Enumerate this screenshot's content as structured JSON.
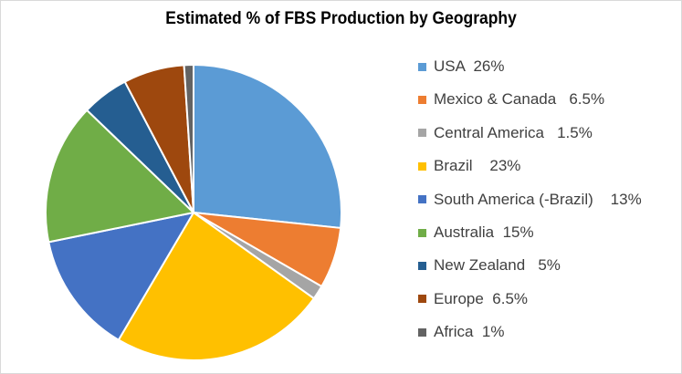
{
  "chart_data": {
    "type": "pie",
    "title": "Estimated % of FBS Production by Geography",
    "legend_position": "right",
    "series": [
      {
        "name": "USA",
        "value": 26,
        "legend_label": "USA  26%",
        "color": "#5b9bd5"
      },
      {
        "name": "Mexico & Canada",
        "value": 6.5,
        "legend_label": "Mexico & Canada   6.5%",
        "color": "#ed7d31"
      },
      {
        "name": "Central America",
        "value": 1.5,
        "legend_label": "Central America   1.5%",
        "color": "#a5a5a5"
      },
      {
        "name": "Brazil",
        "value": 23,
        "legend_label": "Brazil    23%",
        "color": "#ffc000"
      },
      {
        "name": "South America (-Brazil)",
        "value": 13,
        "legend_label": "South America (-Brazil)    13%",
        "color": "#4472c4"
      },
      {
        "name": "Australia",
        "value": 15,
        "legend_label": "Australia  15%",
        "color": "#70ad47"
      },
      {
        "name": "New Zealand",
        "value": 5,
        "legend_label": "New Zealand   5%",
        "color": "#255e91"
      },
      {
        "name": "Europe",
        "value": 6.5,
        "legend_label": "Europe  6.5%",
        "color": "#9e480e"
      },
      {
        "name": "Africa",
        "value": 1,
        "legend_label": "Africa  1%",
        "color": "#636363"
      }
    ]
  }
}
